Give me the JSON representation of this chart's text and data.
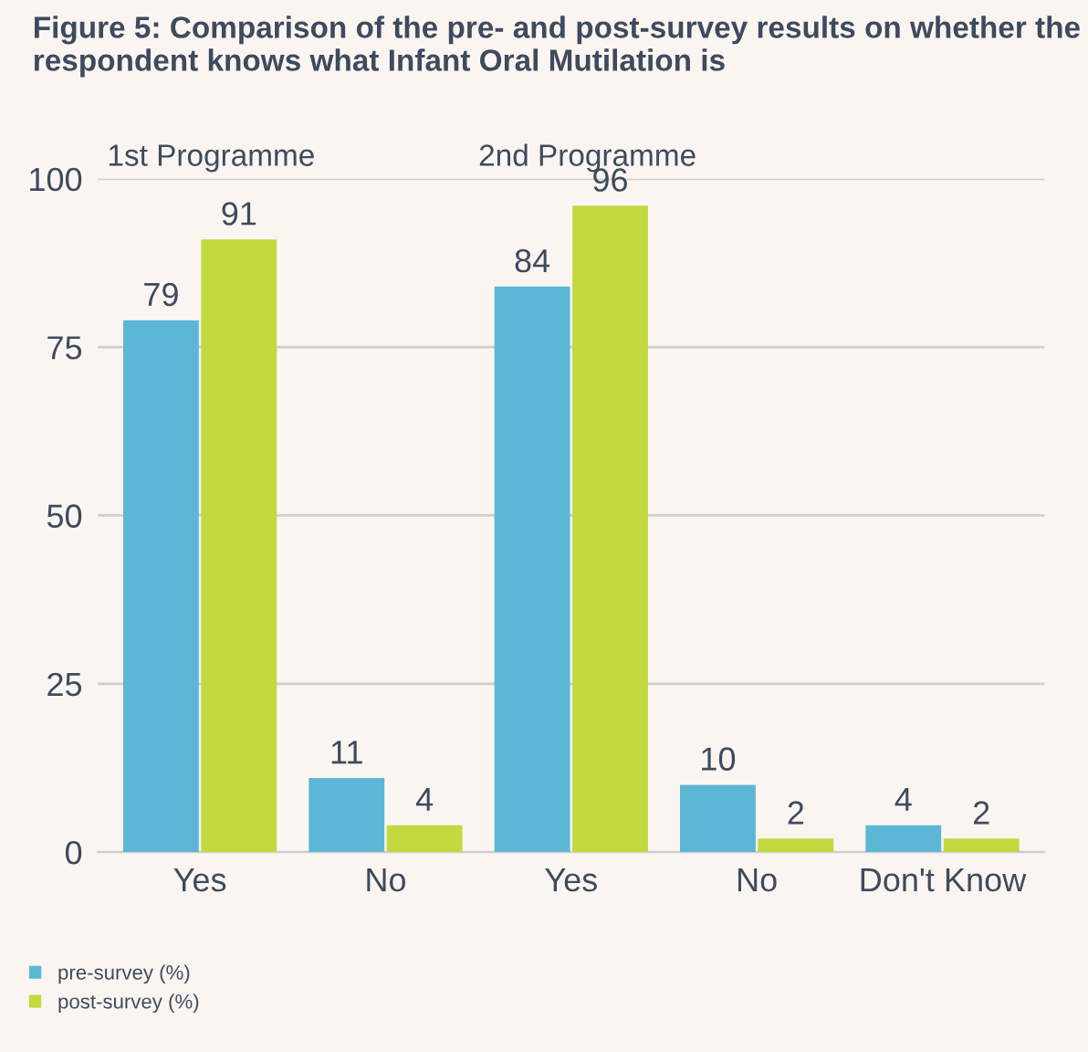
{
  "chart_data": {
    "type": "bar",
    "title": "Figure 5: Comparison of the pre- and post-survey results on whether the respondent knows what Infant Oral Mutilation is",
    "categories": [
      "Yes",
      "No",
      "Yes",
      "No",
      "Don't Know"
    ],
    "series": [
      {
        "name": "pre-survey (%)",
        "color": "#5bb7d5",
        "values": [
          79,
          11,
          84,
          10,
          4
        ]
      },
      {
        "name": "post-survey (%)",
        "color": "#c2d93f",
        "values": [
          91,
          4,
          96,
          2,
          2
        ]
      }
    ],
    "annotations": [
      "1st Programme",
      "2nd Programme"
    ],
    "ylim": [
      0,
      100
    ],
    "yticks": [
      0,
      25,
      50,
      75,
      100
    ],
    "grid": "y",
    "legend": "bottom left",
    "data_labels": true
  }
}
